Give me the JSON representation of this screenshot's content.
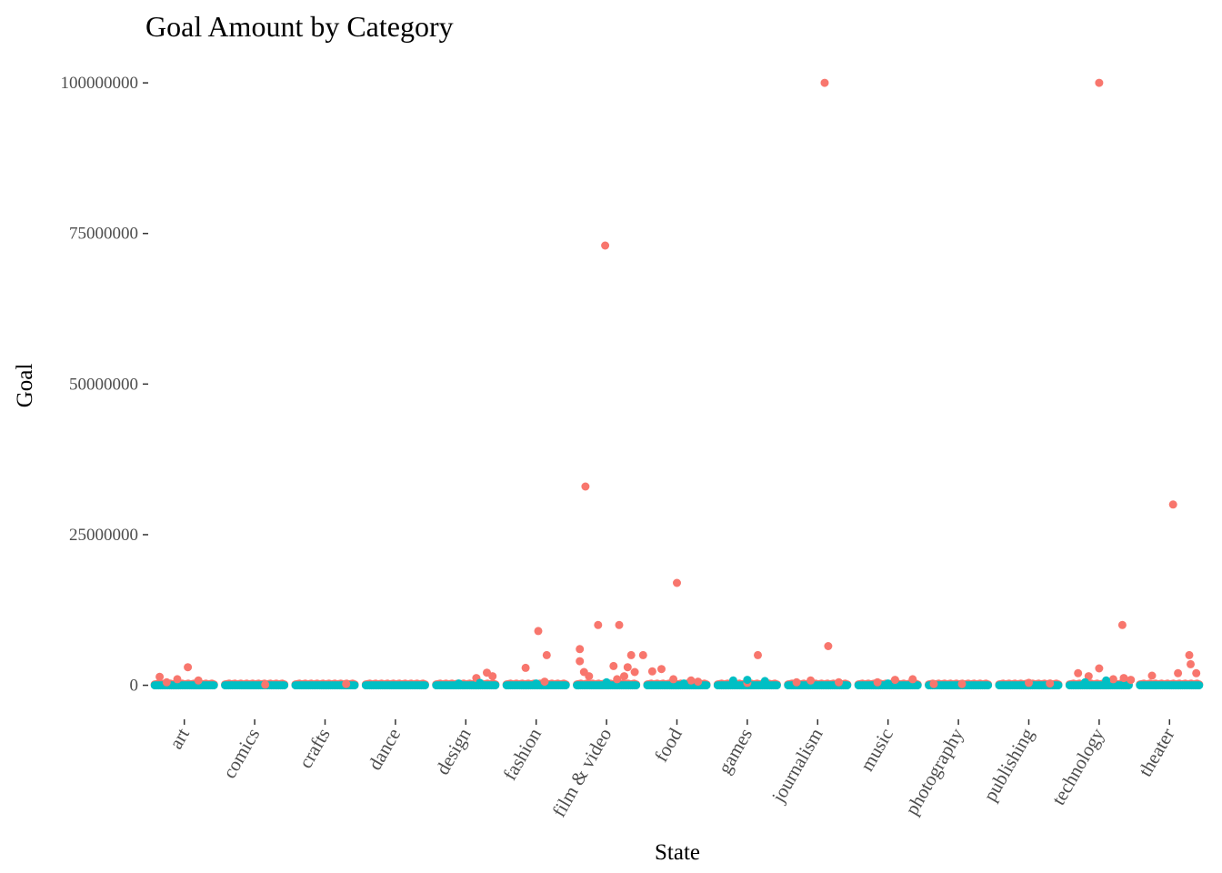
{
  "chart_data": {
    "type": "scatter",
    "title": "Goal Amount by Category",
    "xlabel": "State",
    "ylabel": "Goal",
    "categories": [
      "art",
      "comics",
      "crafts",
      "dance",
      "design",
      "fashion",
      "film & video",
      "food",
      "games",
      "journalism",
      "music",
      "photography",
      "publishing",
      "technology",
      "theater"
    ],
    "yticks": [
      0,
      25000000,
      50000000,
      75000000,
      100000000
    ],
    "ytick_labels": [
      "0",
      "25000000",
      "50000000",
      "75000000",
      "100000000"
    ],
    "ylim": [
      -5500000,
      105000000
    ],
    "grid": false,
    "legend": "none",
    "colors": {
      "red": "#F8766D",
      "teal": "#00BFC4"
    },
    "series": [
      {
        "color": "red",
        "points": [
          {
            "category": "art",
            "offset": -0.35,
            "y": 1400000
          },
          {
            "category": "art",
            "offset": -0.1,
            "y": 1000000
          },
          {
            "category": "art",
            "offset": 0.05,
            "y": 3000000
          },
          {
            "category": "art",
            "offset": 0.2,
            "y": 800000
          },
          {
            "category": "art",
            "offset": -0.25,
            "y": 500000
          },
          {
            "category": "comics",
            "offset": 0.15,
            "y": 100000
          },
          {
            "category": "crafts",
            "offset": 0.3,
            "y": 200000
          },
          {
            "category": "design",
            "offset": 0.15,
            "y": 1200000
          },
          {
            "category": "design",
            "offset": 0.3,
            "y": 2100000
          },
          {
            "category": "design",
            "offset": 0.38,
            "y": 1500000
          },
          {
            "category": "fashion",
            "offset": -0.15,
            "y": 2900000
          },
          {
            "category": "fashion",
            "offset": 0.03,
            "y": 9000000
          },
          {
            "category": "fashion",
            "offset": 0.15,
            "y": 5000000
          },
          {
            "category": "fashion",
            "offset": 0.12,
            "y": 600000
          },
          {
            "category": "film & video",
            "offset": -0.38,
            "y": 6000000
          },
          {
            "category": "film & video",
            "offset": -0.38,
            "y": 4000000
          },
          {
            "category": "film & video",
            "offset": -0.3,
            "y": 33000000
          },
          {
            "category": "film & video",
            "offset": -0.32,
            "y": 2200000
          },
          {
            "category": "film & video",
            "offset": -0.12,
            "y": 10000000
          },
          {
            "category": "film & video",
            "offset": -0.02,
            "y": 73000000
          },
          {
            "category": "film & video",
            "offset": -0.25,
            "y": 1500000
          },
          {
            "category": "film & video",
            "offset": 0.1,
            "y": 3200000
          },
          {
            "category": "film & video",
            "offset": 0.18,
            "y": 10000000
          },
          {
            "category": "film & video",
            "offset": 0.3,
            "y": 3000000
          },
          {
            "category": "film & video",
            "offset": 0.35,
            "y": 5000000
          },
          {
            "category": "film & video",
            "offset": 0.4,
            "y": 2200000
          },
          {
            "category": "film & video",
            "offset": 0.25,
            "y": 1500000
          },
          {
            "category": "film & video",
            "offset": 0.15,
            "y": 1000000
          },
          {
            "category": "film & video",
            "offset": 0.52,
            "y": 5000000
          },
          {
            "category": "food",
            "offset": -0.35,
            "y": 2300000
          },
          {
            "category": "food",
            "offset": -0.22,
            "y": 2700000
          },
          {
            "category": "food",
            "offset": 0.0,
            "y": 17000000
          },
          {
            "category": "food",
            "offset": -0.05,
            "y": 1000000
          },
          {
            "category": "food",
            "offset": 0.2,
            "y": 800000
          },
          {
            "category": "food",
            "offset": 0.3,
            "y": 600000
          },
          {
            "category": "games",
            "offset": 0.15,
            "y": 5000000
          },
          {
            "category": "games",
            "offset": 0.0,
            "y": 400000
          },
          {
            "category": "journalism",
            "offset": -0.3,
            "y": 500000
          },
          {
            "category": "journalism",
            "offset": -0.1,
            "y": 800000
          },
          {
            "category": "journalism",
            "offset": 0.1,
            "y": 100000000
          },
          {
            "category": "journalism",
            "offset": 0.15,
            "y": 6500000
          },
          {
            "category": "journalism",
            "offset": 0.3,
            "y": 500000
          },
          {
            "category": "music",
            "offset": -0.15,
            "y": 500000
          },
          {
            "category": "music",
            "offset": 0.1,
            "y": 900000
          },
          {
            "category": "music",
            "offset": 0.35,
            "y": 1000000
          },
          {
            "category": "photography",
            "offset": -0.35,
            "y": 200000
          },
          {
            "category": "photography",
            "offset": 0.05,
            "y": 200000
          },
          {
            "category": "publishing",
            "offset": 0.0,
            "y": 400000
          },
          {
            "category": "publishing",
            "offset": 0.3,
            "y": 300000
          },
          {
            "category": "technology",
            "offset": -0.3,
            "y": 2000000
          },
          {
            "category": "technology",
            "offset": -0.15,
            "y": 1500000
          },
          {
            "category": "technology",
            "offset": 0.0,
            "y": 100000000
          },
          {
            "category": "technology",
            "offset": 0.0,
            "y": 2800000
          },
          {
            "category": "technology",
            "offset": 0.2,
            "y": 1000000
          },
          {
            "category": "technology",
            "offset": 0.33,
            "y": 10000000
          },
          {
            "category": "technology",
            "offset": 0.35,
            "y": 1200000
          },
          {
            "category": "technology",
            "offset": 0.45,
            "y": 900000
          },
          {
            "category": "theater",
            "offset": -0.25,
            "y": 1600000
          },
          {
            "category": "theater",
            "offset": 0.05,
            "y": 30000000
          },
          {
            "category": "theater",
            "offset": 0.12,
            "y": 2000000
          },
          {
            "category": "theater",
            "offset": 0.28,
            "y": 5000000
          },
          {
            "category": "theater",
            "offset": 0.3,
            "y": 3500000
          },
          {
            "category": "theater",
            "offset": 0.38,
            "y": 2000000
          }
        ]
      },
      {
        "color": "teal",
        "points": [
          {
            "category": "games",
            "offset": -0.2,
            "y": 800000
          },
          {
            "category": "games",
            "offset": 0.0,
            "y": 900000
          },
          {
            "category": "games",
            "offset": 0.25,
            "y": 700000
          },
          {
            "category": "design",
            "offset": -0.1,
            "y": 300000
          },
          {
            "category": "design",
            "offset": 0.2,
            "y": 400000
          },
          {
            "category": "technology",
            "offset": -0.2,
            "y": 500000
          },
          {
            "category": "technology",
            "offset": 0.1,
            "y": 800000
          },
          {
            "category": "film & video",
            "offset": 0.0,
            "y": 500000
          },
          {
            "category": "fashion",
            "offset": 0.0,
            "y": 300000
          },
          {
            "category": "food",
            "offset": 0.1,
            "y": 300000
          },
          {
            "category": "music",
            "offset": 0.0,
            "y": 300000
          }
        ]
      }
    ]
  }
}
